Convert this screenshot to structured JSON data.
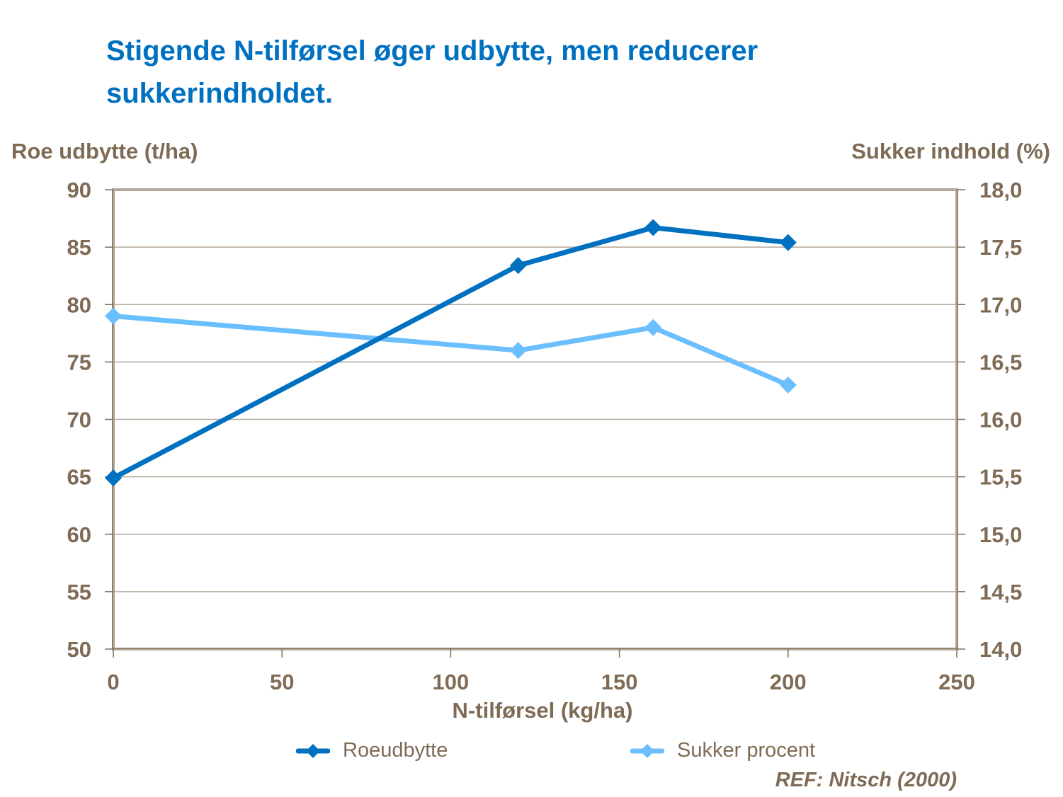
{
  "title": "Stigende N-tilførsel øger udbytte, men reducerer sukkerindholdet.",
  "reference": "REF: Nitsch (2000)",
  "colors": {
    "title": "#0070C0",
    "text": "#7F6B55",
    "axis": "#B4A89A",
    "gridline": "#B4A89A",
    "series_dark": "#0070C0",
    "series_light": "#6CBFFF"
  },
  "chart_data": {
    "type": "line",
    "title": "Stigende N-tilførsel øger udbytte, men reducerer sukkerindholdet.",
    "xlabel": "N-tilførsel (kg/ha)",
    "ylabel": "Roe udbytte (t/ha)",
    "ylabel_right": "Sukker indhold (%)",
    "xlim": [
      0,
      250
    ],
    "ylim": [
      50,
      90
    ],
    "ylim_right": [
      14.0,
      18.0
    ],
    "x_ticks": [
      "0",
      "50",
      "100",
      "150",
      "200",
      "250"
    ],
    "x_tick_values": [
      0,
      50,
      100,
      150,
      200,
      250
    ],
    "y_ticks": [
      "50",
      "55",
      "60",
      "65",
      "70",
      "75",
      "80",
      "85",
      "90"
    ],
    "y_tick_values": [
      50,
      55,
      60,
      65,
      70,
      75,
      80,
      85,
      90
    ],
    "y_right_ticks": [
      "14,0",
      "14,5",
      "15,0",
      "15,5",
      "16,0",
      "16,5",
      "17,0",
      "17,5",
      "18,0"
    ],
    "y_right_tick_values": [
      14.0,
      14.5,
      15.0,
      15.5,
      16.0,
      16.5,
      17.0,
      17.5,
      18.0
    ],
    "grid": true,
    "legend_position": "bottom",
    "series": [
      {
        "name": "Roeudbytte",
        "axis": "left",
        "color": "#0070C0",
        "marker": "diamond",
        "x": [
          0,
          120,
          160,
          200
        ],
        "values": [
          64.9,
          83.4,
          86.7,
          85.4
        ]
      },
      {
        "name": "Sukker procent",
        "axis": "right",
        "color": "#6CBFFF",
        "marker": "diamond",
        "x": [
          0,
          120,
          160,
          200
        ],
        "values": [
          16.9,
          16.6,
          16.8,
          16.3
        ]
      }
    ]
  }
}
